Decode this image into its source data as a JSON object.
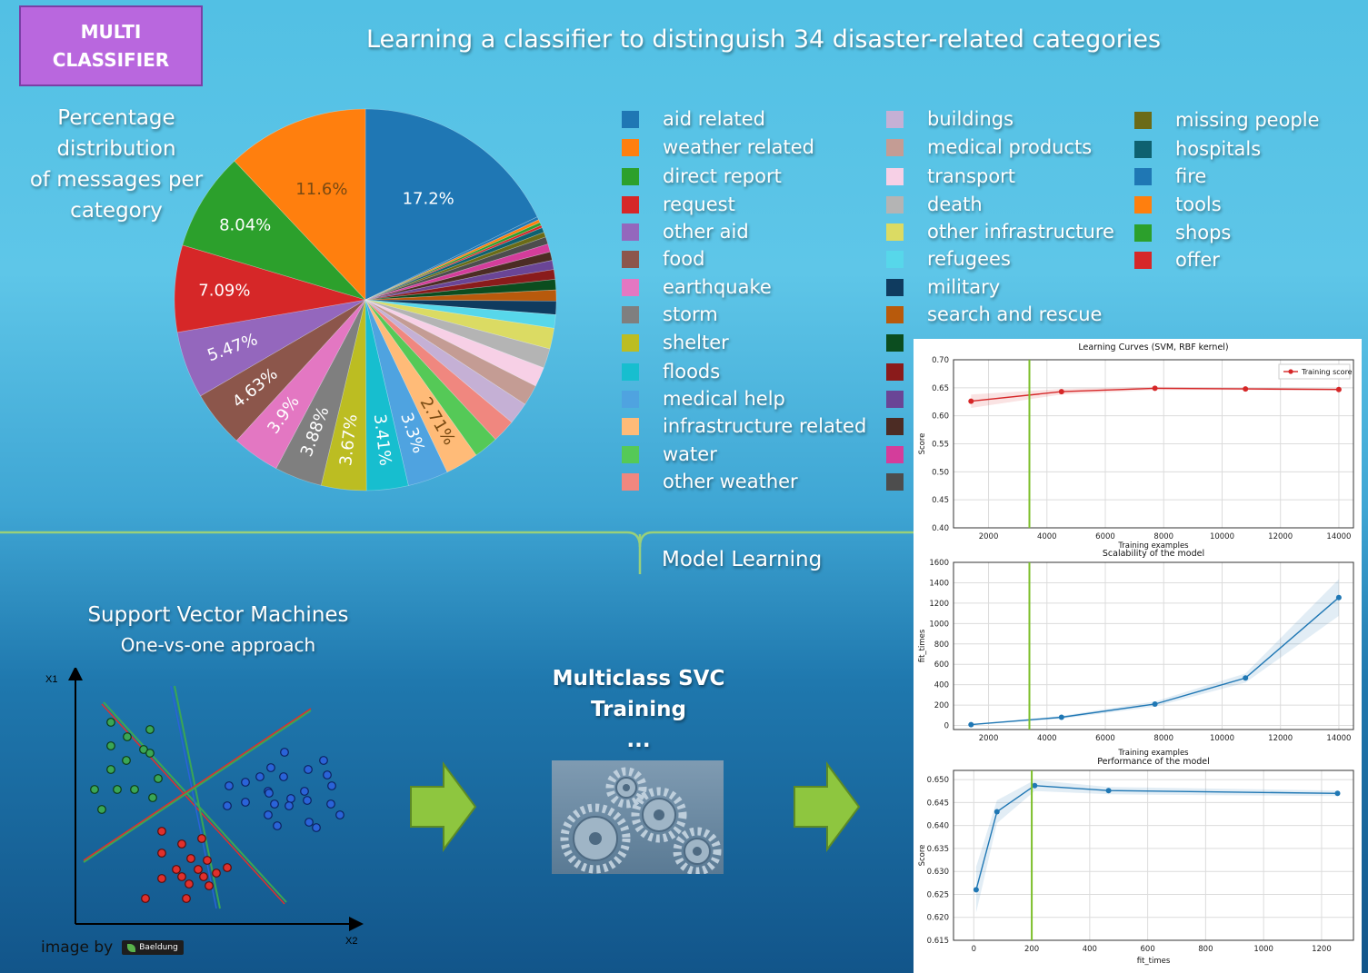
{
  "badge": {
    "line1": "MULTI",
    "line2": "CLASSIFIER"
  },
  "title": "Learning a classifier to distinguish 34 disaster-related categories",
  "pie_caption": [
    "Percentage distribution",
    "of messages per",
    "category"
  ],
  "section_label": "Model Learning",
  "svm": {
    "title": "Support Vector Machines",
    "subtitle": "One-vs-one approach",
    "axis_x": "X2",
    "axis_y": "X1"
  },
  "credit": {
    "text": "image by",
    "logo": "Baeldung"
  },
  "svc": {
    "line1": "Multiclass SVC",
    "line2": "Training",
    "line3": "..."
  },
  "legend": [
    {
      "label": "aid related",
      "color": "#1f77b4"
    },
    {
      "label": "weather related",
      "color": "#ff7f0e"
    },
    {
      "label": "direct report",
      "color": "#2ca02c"
    },
    {
      "label": "request",
      "color": "#d62728"
    },
    {
      "label": "other aid",
      "color": "#9467bd"
    },
    {
      "label": "food",
      "color": "#8c564b"
    },
    {
      "label": "earthquake",
      "color": "#e377c2"
    },
    {
      "label": "storm",
      "color": "#7f7f7f"
    },
    {
      "label": "shelter",
      "color": "#bcbd22"
    },
    {
      "label": "floods",
      "color": "#17becf"
    },
    {
      "label": "medical help",
      "color": "#4fa3e0"
    },
    {
      "label": "infrastructure related",
      "color": "#ffbb78"
    },
    {
      "label": "water",
      "color": "#55c957"
    },
    {
      "label": "other weather",
      "color": "#f0877f"
    },
    {
      "label": "buildings",
      "color": "#c5b0d5"
    },
    {
      "label": "medical products",
      "color": "#c49c94"
    },
    {
      "label": "transport",
      "color": "#f7d0e6"
    },
    {
      "label": "death",
      "color": "#b4b4b4"
    },
    {
      "label": "other infrastructure",
      "color": "#dbdb63"
    },
    {
      "label": "refugees",
      "color": "#57d7ea"
    },
    {
      "label": "military",
      "color": "#0f3b5f"
    },
    {
      "label": "search and rescue",
      "color": "#b85a0c"
    },
    {
      "label": "",
      "color": "#0b4d1f"
    },
    {
      "label": "",
      "color": "#8a1b1b"
    },
    {
      "label": "",
      "color": "#6a4596"
    },
    {
      "label": "",
      "color": "#4c2c24"
    },
    {
      "label": "",
      "color": "#d43d9b"
    },
    {
      "label": "",
      "color": "#4d4d4d"
    },
    {
      "label": "missing people",
      "color": "#6b6b17"
    },
    {
      "label": "hospitals",
      "color": "#0e6170"
    },
    {
      "label": "fire",
      "color": "#1f77b4"
    },
    {
      "label": "tools",
      "color": "#ff7f0e"
    },
    {
      "label": "shops",
      "color": "#2ca02c"
    },
    {
      "label": "offer",
      "color": "#d62728"
    }
  ],
  "chart_data": [
    {
      "type": "pie",
      "slice_labels": [
        "17.2%",
        "11.6%",
        "8.04%",
        "7.09%",
        "5.47%",
        "4.63%",
        "3.9%",
        "3.88%",
        "3.67%",
        "3.41%",
        "3.3%",
        "2.71%"
      ],
      "values_clockwise": [
        {
          "label": "aid related",
          "value": 17.2,
          "color": "#1f77b4"
        },
        {
          "label": "fire",
          "value": 0.25,
          "color": "#1f77b4"
        },
        {
          "label": "tools",
          "value": 0.25,
          "color": "#ff7f0e"
        },
        {
          "label": "shops",
          "value": 0.25,
          "color": "#2ca02c"
        },
        {
          "label": "offer",
          "value": 0.2,
          "color": "#d62728"
        },
        {
          "label": "hospitals",
          "value": 0.4,
          "color": "#0e6170"
        },
        {
          "label": "missing people",
          "value": 0.4,
          "color": "#6b6b17"
        },
        {
          "label": "",
          "value": 0.6,
          "color": "#4d4d4d"
        },
        {
          "label": "",
          "value": 0.65,
          "color": "#d43d9b"
        },
        {
          "label": "",
          "value": 0.7,
          "color": "#4c2c24"
        },
        {
          "label": "",
          "value": 0.75,
          "color": "#6a4596"
        },
        {
          "label": "",
          "value": 0.8,
          "color": "#8a1b1b"
        },
        {
          "label": "",
          "value": 0.85,
          "color": "#0b4d1f"
        },
        {
          "label": "search and rescue",
          "value": 0.9,
          "color": "#b85a0c"
        },
        {
          "label": "military",
          "value": 1.1,
          "color": "#0f3b5f"
        },
        {
          "label": "refugees",
          "value": 1.1,
          "color": "#57d7ea"
        },
        {
          "label": "other infrastructure",
          "value": 1.7,
          "color": "#dbdb63"
        },
        {
          "label": "death",
          "value": 1.6,
          "color": "#b4b4b4"
        },
        {
          "label": "transport",
          "value": 1.6,
          "color": "#f7d0e6"
        },
        {
          "label": "medical products",
          "value": 1.7,
          "color": "#c49c94"
        },
        {
          "label": "buildings",
          "value": 1.8,
          "color": "#c5b0d5"
        },
        {
          "label": "other weather",
          "value": 1.9,
          "color": "#f0877f"
        },
        {
          "label": "water",
          "value": 2.0,
          "color": "#55c957"
        },
        {
          "label": "infrastructure related",
          "value": 2.71,
          "color": "#ffbb78"
        },
        {
          "label": "medical help",
          "value": 3.3,
          "color": "#4fa3e0"
        },
        {
          "label": "floods",
          "value": 3.41,
          "color": "#17becf"
        },
        {
          "label": "shelter",
          "value": 3.67,
          "color": "#bcbd22"
        },
        {
          "label": "storm",
          "value": 3.88,
          "color": "#7f7f7f"
        },
        {
          "label": "earthquake",
          "value": 3.9,
          "color": "#e377c2"
        },
        {
          "label": "food",
          "value": 4.63,
          "color": "#8c564b"
        },
        {
          "label": "other aid",
          "value": 5.47,
          "color": "#9467bd"
        },
        {
          "label": "request",
          "value": 7.09,
          "color": "#d62728"
        },
        {
          "label": "direct report",
          "value": 8.04,
          "color": "#2ca02c"
        },
        {
          "label": "weather related",
          "value": 11.6,
          "color": "#ff7f0e"
        }
      ]
    },
    {
      "type": "line",
      "title": "Learning Curves (SVM, RBF kernel)",
      "xlabel": "Training examples",
      "ylabel": "Score",
      "legend": "Training score",
      "legend_position": "top-right",
      "grid": true,
      "xlim": [
        800,
        14500
      ],
      "ylim": [
        0.4,
        0.7
      ],
      "xticks": [
        2000,
        4000,
        6000,
        8000,
        10000,
        12000,
        14000
      ],
      "yticks": [
        "0.40",
        "0.45",
        "0.50",
        "0.55",
        "0.60",
        "0.65",
        "0.70"
      ],
      "series": [
        {
          "name": "Training score",
          "color": "#d62728",
          "x": [
            1400,
            4500,
            7700,
            10800,
            14000
          ],
          "y": [
            0.626,
            0.643,
            0.649,
            0.648,
            0.647
          ],
          "band": [
            0.012,
            0.005,
            0.003,
            0.002,
            0.002
          ]
        }
      ],
      "vline_x": 3400
    },
    {
      "type": "line",
      "title": "Scalability of the model",
      "xlabel": "Training examples",
      "ylabel": "fit_times",
      "grid": true,
      "xlim": [
        800,
        14500
      ],
      "ylim": [
        -40,
        1600
      ],
      "xticks": [
        2000,
        4000,
        6000,
        8000,
        10000,
        12000,
        14000
      ],
      "yticks": [
        "0",
        "200",
        "400",
        "600",
        "800",
        "1000",
        "1200",
        "1400",
        "1600"
      ],
      "series": [
        {
          "name": "",
          "color": "#1f77b4",
          "x": [
            1400,
            4500,
            7700,
            10800,
            14000
          ],
          "y": [
            8,
            80,
            210,
            465,
            1255
          ],
          "band": [
            4,
            15,
            25,
            45,
            180
          ]
        }
      ],
      "vline_x": 3400
    },
    {
      "type": "line",
      "title": "Performance of the model",
      "xlabel": "fit_times",
      "ylabel": "Score",
      "grid": true,
      "xlim": [
        -70,
        1310
      ],
      "ylim": [
        0.615,
        0.652
      ],
      "xticks": [
        0,
        200,
        400,
        600,
        800,
        1000,
        1200
      ],
      "yticks": [
        "0.615",
        "0.620",
        "0.625",
        "0.630",
        "0.635",
        "0.640",
        "0.645",
        "0.650"
      ],
      "series": [
        {
          "name": "",
          "color": "#1f77b4",
          "x": [
            8,
            80,
            210,
            465,
            1255
          ],
          "y": [
            0.626,
            0.643,
            0.6487,
            0.6476,
            0.647
          ],
          "band": [
            0.005,
            0.0025,
            0.0012,
            0.0008,
            0.0006
          ]
        }
      ],
      "vline_x": 200
    }
  ]
}
